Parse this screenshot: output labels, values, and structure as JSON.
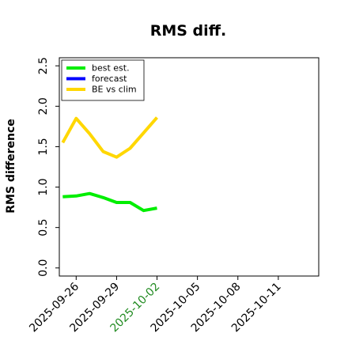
{
  "chart_data": {
    "type": "line",
    "title": "RMS diff.",
    "xlabel": "",
    "ylabel": "RMS difference",
    "ylim": [
      -0.1,
      2.6
    ],
    "xlim": [
      "2025-09-24T18:00",
      "2025-10-14T00:00"
    ],
    "y_ticks": [
      "0.0",
      "0.5",
      "1.0",
      "1.5",
      "2.0",
      "2.5"
    ],
    "x_ticks": [
      {
        "label": "2025-09-26",
        "color": "#000000"
      },
      {
        "label": "2025-09-29",
        "color": "#000000"
      },
      {
        "label": "2025-10-02",
        "color": "#228b22"
      },
      {
        "label": "2025-10-05",
        "color": "#000000"
      },
      {
        "label": "2025-10-08",
        "color": "#000000"
      },
      {
        "label": "2025-10-11",
        "color": "#000000"
      }
    ],
    "legend_position": "top-left",
    "grid": false,
    "series": [
      {
        "name": "best est.",
        "color": "#00ee00",
        "x": [
          "2025-09-25",
          "2025-09-26",
          "2025-09-27",
          "2025-09-28",
          "2025-09-29",
          "2025-09-30",
          "2025-10-01",
          "2025-10-02"
        ],
        "values": [
          0.88,
          0.89,
          0.92,
          0.87,
          0.81,
          0.81,
          0.71,
          0.74
        ]
      },
      {
        "name": "forecast",
        "color": "#0000ff",
        "x": [],
        "values": []
      },
      {
        "name": "BE vs clim",
        "color": "#ffd700",
        "x": [
          "2025-09-25",
          "2025-09-26",
          "2025-09-27",
          "2025-09-28",
          "2025-09-29",
          "2025-09-30",
          "2025-10-01",
          "2025-10-02"
        ],
        "values": [
          1.55,
          1.85,
          1.66,
          1.44,
          1.37,
          1.48,
          1.67,
          1.86
        ]
      }
    ]
  }
}
